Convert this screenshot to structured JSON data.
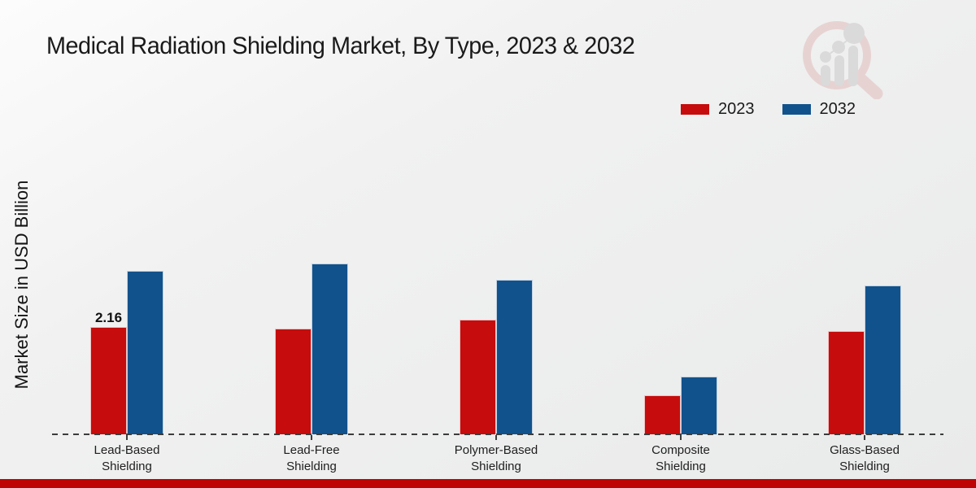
{
  "title": "Medical Radiation Shielding Market, By Type, 2023 & 2032",
  "ylabel": "Market Size in USD Billion",
  "legend": {
    "items": [
      {
        "label": "2023",
        "color": "#c60c0c"
      },
      {
        "label": "2032",
        "color": "#12528c"
      }
    ]
  },
  "chart_data": {
    "type": "bar",
    "title": "Medical Radiation Shielding Market, By Type, 2023 & 2032",
    "xlabel": "",
    "ylabel": "Market Size in USD Billion",
    "categories": [
      "Lead-Based Shielding",
      "Lead-Free Shielding",
      "Polymer-Based Shielding",
      "Composite Shielding",
      "Glass-Based Shielding"
    ],
    "series": [
      {
        "name": "2023",
        "color": "#c60c0c",
        "values": [
          2.16,
          2.13,
          2.31,
          0.79,
          2.09
        ]
      },
      {
        "name": "2032",
        "color": "#12528c",
        "values": [
          3.29,
          3.44,
          3.11,
          1.16,
          3.0
        ]
      }
    ],
    "bar_labels": [
      {
        "series": "2023",
        "category": "Lead-Based Shielding",
        "text": "2.16"
      }
    ],
    "ylim": [
      0,
      4
    ],
    "grid": false,
    "legend_position": "top-right",
    "baseline_style": "dashed"
  }
}
